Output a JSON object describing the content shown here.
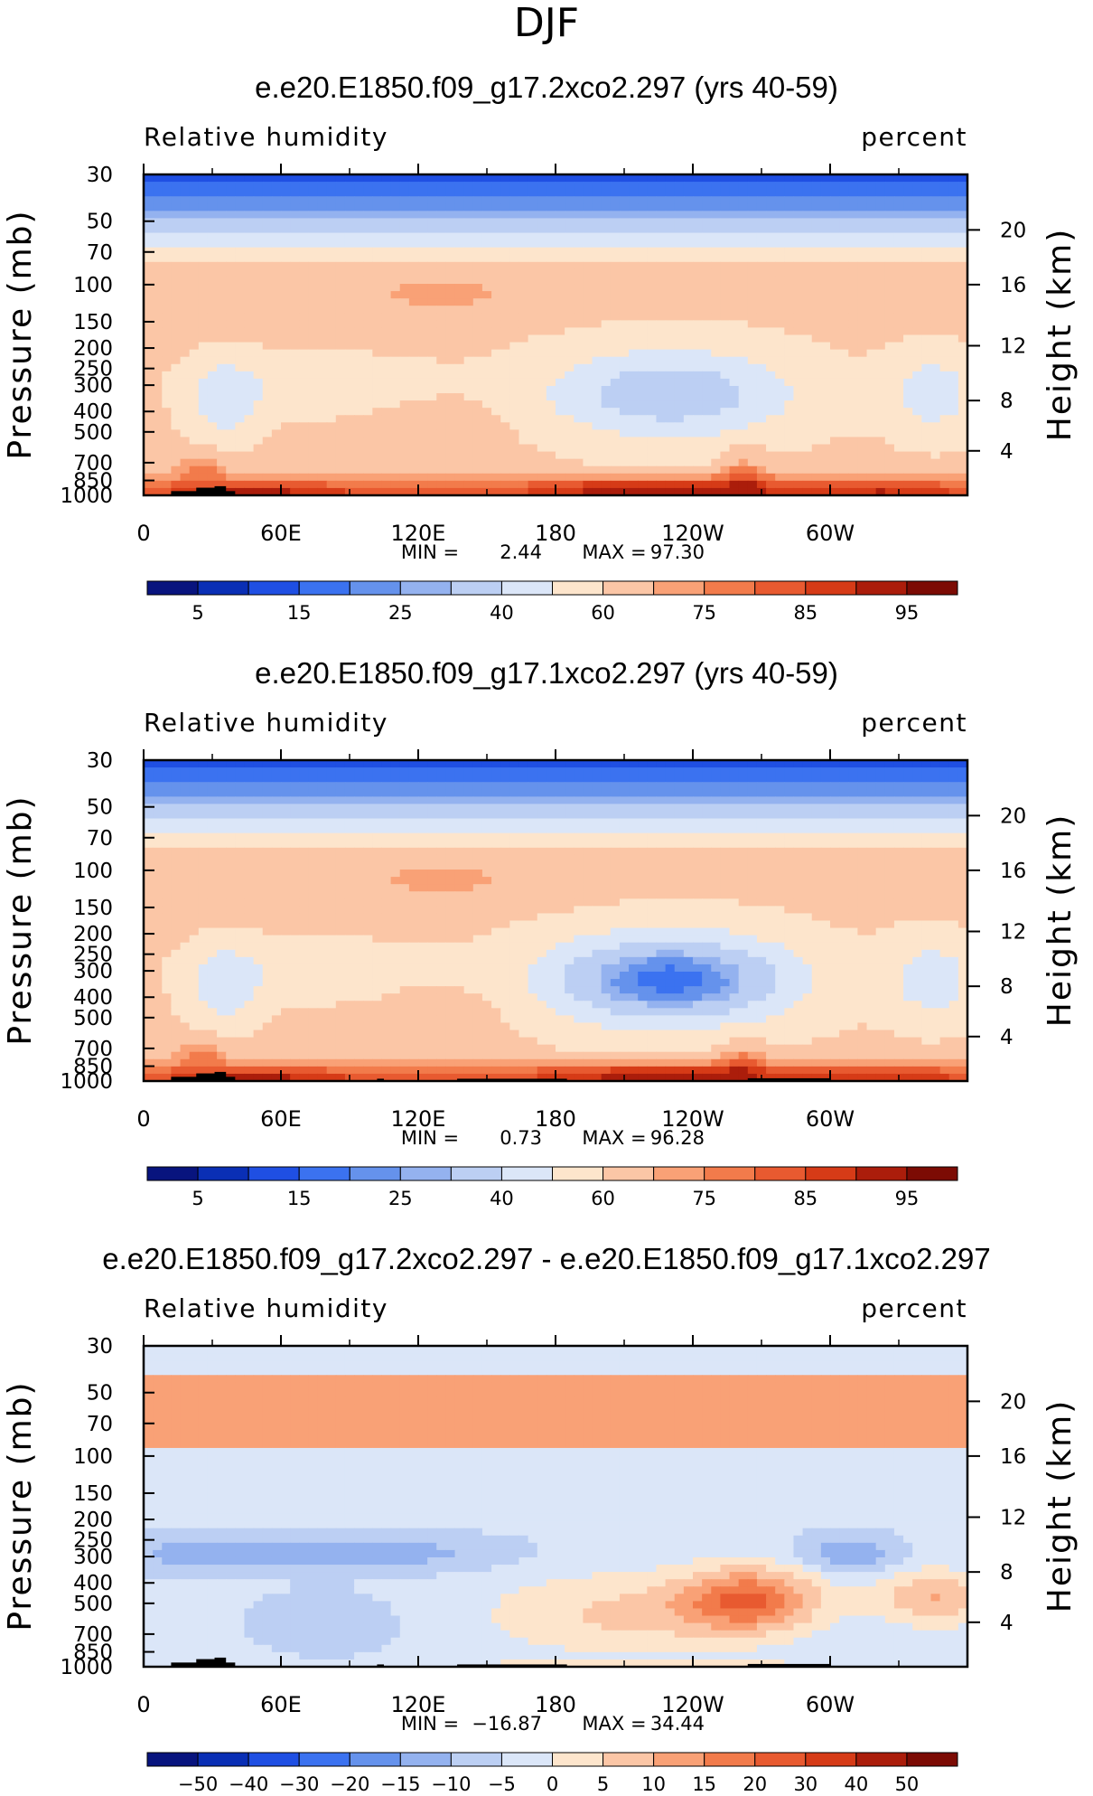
{
  "title": "DJF",
  "chart_data": [
    {
      "type": "heatmap",
      "title": "e.e20.E1850.f09_g17.2xco2.297 (yrs 40-59)",
      "left_label": "Relative humidity",
      "right_label": "percent",
      "ylabel": "Pressure (mb)",
      "ylabel_right": "Height (km)",
      "x_ticks": [
        "0",
        "60E",
        "120E",
        "180",
        "120W",
        "60W"
      ],
      "x_tick_lon": [
        0,
        60,
        120,
        180,
        240,
        300
      ],
      "xlim": [
        0,
        360
      ],
      "y_ticks": [
        "30",
        "50",
        "70",
        "100",
        "150",
        "200",
        "250",
        "300",
        "400",
        "500",
        "700",
        "850",
        "1000"
      ],
      "ylim": [
        1000,
        30
      ],
      "height_ticks": [
        "20",
        "16",
        "12",
        "8",
        "4"
      ],
      "min_label": "MIN =",
      "min_value": "2.44",
      "max_label": "MAX =",
      "max_value": "97.30",
      "colorbar_labels": [
        "5",
        "15",
        "25",
        "40",
        "60",
        "75",
        "85",
        "95"
      ],
      "colorbar_colors": [
        "#08147e",
        "#0a2fb5",
        "#1f4fe3",
        "#3b72f0",
        "#6592ec",
        "#94b2ef",
        "#bccff3",
        "#dbe6f8",
        "#fde5cc",
        "#fbc6a6",
        "#f9a176",
        "#f27b4b",
        "#e85a30",
        "#d63b17",
        "#ab1d0b",
        "#7c0b04"
      ]
    },
    {
      "type": "heatmap",
      "title": "e.e20.E1850.f09_g17.1xco2.297 (yrs 40-59)",
      "left_label": "Relative humidity",
      "right_label": "percent",
      "ylabel": "Pressure (mb)",
      "ylabel_right": "Height (km)",
      "x_ticks": [
        "0",
        "60E",
        "120E",
        "180",
        "120W",
        "60W"
      ],
      "x_tick_lon": [
        0,
        60,
        120,
        180,
        240,
        300
      ],
      "xlim": [
        0,
        360
      ],
      "y_ticks": [
        "30",
        "50",
        "70",
        "100",
        "150",
        "200",
        "250",
        "300",
        "400",
        "500",
        "700",
        "850",
        "1000"
      ],
      "ylim": [
        1000,
        30
      ],
      "height_ticks": [
        "20",
        "16",
        "12",
        "8",
        "4"
      ],
      "min_label": "MIN =",
      "min_value": "0.73",
      "max_label": "MAX =",
      "max_value": "96.28",
      "colorbar_labels": [
        "5",
        "15",
        "25",
        "40",
        "60",
        "75",
        "85",
        "95"
      ],
      "colorbar_colors": [
        "#08147e",
        "#0a2fb5",
        "#1f4fe3",
        "#3b72f0",
        "#6592ec",
        "#94b2ef",
        "#bccff3",
        "#dbe6f8",
        "#fde5cc",
        "#fbc6a6",
        "#f9a176",
        "#f27b4b",
        "#e85a30",
        "#d63b17",
        "#ab1d0b",
        "#7c0b04"
      ]
    },
    {
      "type": "heatmap",
      "title": "e.e20.E1850.f09_g17.2xco2.297 - e.e20.E1850.f09_g17.1xco2.297",
      "left_label": "Relative humidity",
      "right_label": "percent",
      "ylabel": "Pressure (mb)",
      "ylabel_right": "Height (km)",
      "x_ticks": [
        "0",
        "60E",
        "120E",
        "180",
        "120W",
        "60W"
      ],
      "x_tick_lon": [
        0,
        60,
        120,
        180,
        240,
        300
      ],
      "xlim": [
        0,
        360
      ],
      "y_ticks": [
        "30",
        "50",
        "70",
        "100",
        "150",
        "200",
        "250",
        "300",
        "400",
        "500",
        "700",
        "850",
        "1000"
      ],
      "ylim": [
        1000,
        30
      ],
      "height_ticks": [
        "20",
        "16",
        "12",
        "8",
        "4"
      ],
      "min_label": "MIN =",
      "min_value": "−16.87",
      "max_label": "MAX =",
      "max_value": "34.44",
      "colorbar_labels": [
        "−50",
        "−40",
        "−30",
        "−20",
        "−15",
        "−10",
        "−5",
        "0",
        "5",
        "10",
        "15",
        "20",
        "30",
        "40",
        "50"
      ],
      "colorbar_colors": [
        "#08147e",
        "#0a2fb5",
        "#1f4fe3",
        "#3b72f0",
        "#6592ec",
        "#94b2ef",
        "#bccff3",
        "#dbe6f8",
        "#fde5cc",
        "#fbc6a6",
        "#f9a176",
        "#f27b4b",
        "#e85a30",
        "#d63b17",
        "#ab1d0b",
        "#7c0b04"
      ]
    }
  ]
}
